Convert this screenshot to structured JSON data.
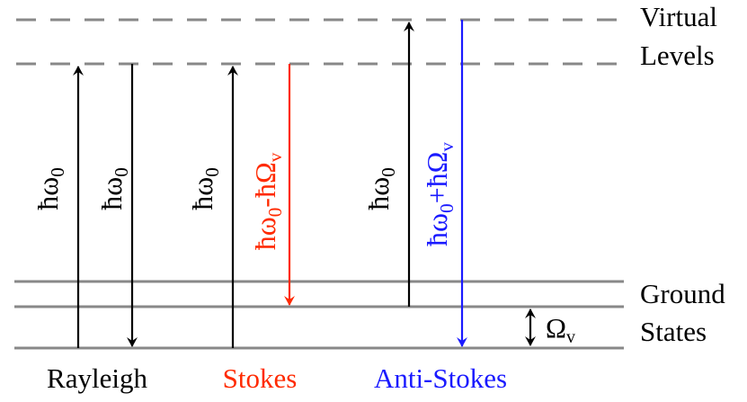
{
  "level_labels": {
    "virtual_line1": "Virtual",
    "virtual_line2": "Levels",
    "ground_line1": "Ground",
    "ground_line2": "States"
  },
  "transitions": [
    {
      "id": "rayleigh-up",
      "label_base": "ħω",
      "label_sub": "0",
      "label_rest": "",
      "label_rest_sub": "",
      "color": "#000000"
    },
    {
      "id": "rayleigh-down",
      "label_base": "ħω",
      "label_sub": "0",
      "label_rest": "",
      "label_rest_sub": "",
      "color": "#000000"
    },
    {
      "id": "stokes-up",
      "label_base": "ħω",
      "label_sub": "0",
      "label_rest": "",
      "label_rest_sub": "",
      "color": "#000000"
    },
    {
      "id": "stokes-down",
      "label_base": "ħω",
      "label_sub": "0",
      "label_rest": "-ħΩ",
      "label_rest_sub": "v",
      "color": "#ff2a00"
    },
    {
      "id": "antistokes-up",
      "label_base": "ħω",
      "label_sub": "0",
      "label_rest": "",
      "label_rest_sub": "",
      "color": "#000000"
    },
    {
      "id": "antistokes-down",
      "label_base": "ħω",
      "label_sub": "0",
      "label_rest": "+ħΩ",
      "label_rest_sub": "v",
      "color": "#1a1aff"
    }
  ],
  "vibrational_spacing": {
    "symbol": "Ω",
    "sub": "v"
  },
  "process_labels": [
    {
      "id": "rayleigh",
      "text": "Rayleigh",
      "color": "#000000"
    },
    {
      "id": "stokes",
      "text": "Stokes",
      "color": "#ff2a00"
    },
    {
      "id": "antistokes",
      "text": "Anti-Stokes",
      "color": "#1a1aff"
    }
  ],
  "colors": {
    "virtual_level": "#888888",
    "ground_level": "#888888",
    "arrow_default": "#000000",
    "stokes": "#ff2a00",
    "antistokes": "#1a1aff"
  }
}
